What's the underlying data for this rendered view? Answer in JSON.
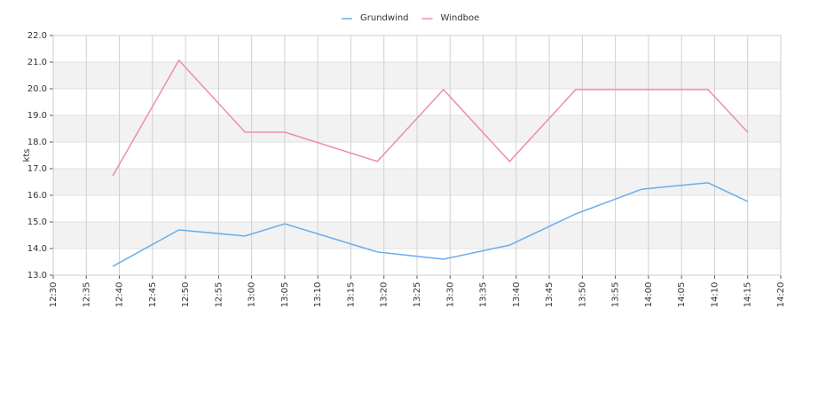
{
  "chart_data": {
    "type": "line",
    "y_label": "kts",
    "x": [
      "12:39",
      "12:49",
      "12:59",
      "13:05",
      "13:19",
      "13:29",
      "13:39",
      "13:49",
      "13:59",
      "14:09",
      "14:15"
    ],
    "series": [
      {
        "name": "Grundwind",
        "color": "#6aaeea",
        "values": [
          13.33,
          14.7,
          14.47,
          14.93,
          13.87,
          13.6,
          14.13,
          15.3,
          16.23,
          16.47,
          15.77
        ]
      },
      {
        "name": "Windboe",
        "color": "#ef8ab5",
        "values": [
          16.73,
          21.07,
          18.37,
          18.37,
          17.27,
          19.97,
          17.27,
          19.97,
          19.97,
          19.97,
          18.37
        ]
      }
    ],
    "xlim": [
      "12:30",
      "14:20"
    ],
    "xticks": [
      "12:30",
      "12:35",
      "12:40",
      "12:45",
      "12:50",
      "12:55",
      "13:00",
      "13:05",
      "13:10",
      "13:15",
      "13:20",
      "13:25",
      "13:30",
      "13:35",
      "13:40",
      "13:45",
      "13:50",
      "13:55",
      "14:00",
      "14:05",
      "14:10",
      "14:15",
      "14:20"
    ],
    "ylim": [
      13,
      22
    ],
    "yticks": [
      {
        "value": 13,
        "label": "13.0"
      },
      {
        "value": 14,
        "label": "14.0"
      },
      {
        "value": 15,
        "label": "15.0"
      },
      {
        "value": 16,
        "label": "16.0"
      },
      {
        "value": 17,
        "label": "17.0"
      },
      {
        "value": 18,
        "label": "18.0"
      },
      {
        "value": 19,
        "label": "19.0"
      },
      {
        "value": 20,
        "label": "20.0"
      },
      {
        "value": 21,
        "label": "21.0"
      },
      {
        "value": 22,
        "label": "22.0"
      }
    ],
    "grid": true,
    "legend": "top"
  }
}
